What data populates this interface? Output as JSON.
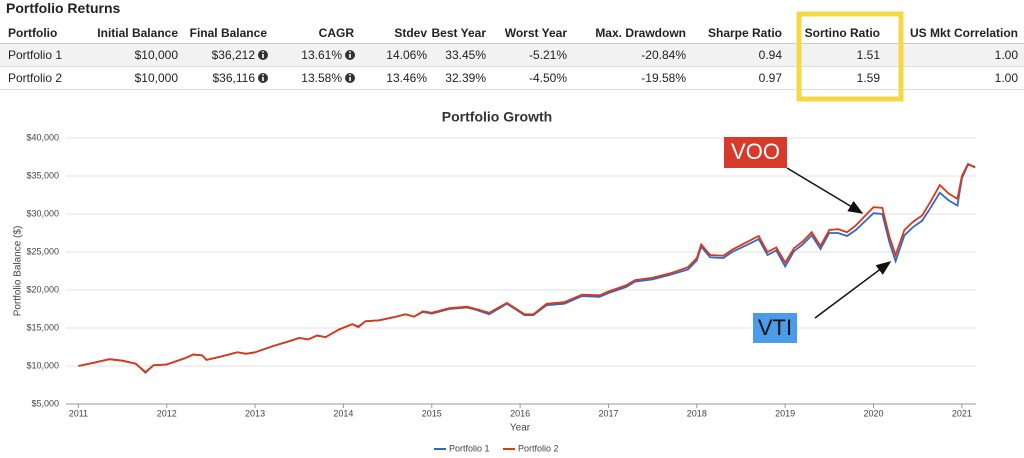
{
  "table": {
    "title": "Portfolio Returns",
    "columns": [
      "Portfolio",
      "Initial Balance",
      "Final Balance",
      "CAGR",
      "Stdev",
      "Best Year",
      "Worst Year",
      "Max. Drawdown",
      "Sharpe Ratio",
      "Sortino Ratio",
      "US Mkt Correlation"
    ],
    "rows": [
      [
        "Portfolio 1",
        "$10,000",
        "$36,212",
        "13.61%",
        "14.06%",
        "33.45%",
        "-5.21%",
        "-20.84%",
        "0.94",
        "1.51",
        "1.00"
      ],
      [
        "Portfolio 2",
        "$10,000",
        "$36,116",
        "13.58%",
        "13.46%",
        "32.39%",
        "-4.50%",
        "-19.58%",
        "0.97",
        "1.59",
        "1.00"
      ]
    ]
  },
  "chart_data": {
    "type": "line",
    "title": "Portfolio Growth",
    "x_label": "Year",
    "y_label": "Portfolio Balance ($)",
    "annotations": [
      "VOO",
      "VTI"
    ],
    "x": [
      2011.0,
      2011.2,
      2011.35,
      2011.5,
      2011.65,
      2011.76,
      2011.85,
      2012.0,
      2012.2,
      2012.3,
      2012.4,
      2012.45,
      2012.6,
      2012.8,
      2012.9,
      2013.0,
      2013.2,
      2013.4,
      2013.5,
      2013.6,
      2013.7,
      2013.8,
      2013.95,
      2014.1,
      2014.17,
      2014.25,
      2014.4,
      2014.6,
      2014.7,
      2014.8,
      2014.9,
      2015.0,
      2015.2,
      2015.4,
      2015.5,
      2015.65,
      2015.85,
      2016.05,
      2016.15,
      2016.3,
      2016.5,
      2016.7,
      2016.9,
      2017.0,
      2017.2,
      2017.3,
      2017.5,
      2017.7,
      2017.9,
      2018.0,
      2018.05,
      2018.15,
      2018.3,
      2018.4,
      2018.6,
      2018.7,
      2018.8,
      2018.9,
      2019.0,
      2019.1,
      2019.2,
      2019.3,
      2019.4,
      2019.5,
      2019.6,
      2019.7,
      2019.8,
      2019.9,
      2020.0,
      2020.1,
      2020.18,
      2020.25,
      2020.35,
      2020.45,
      2020.55,
      2020.65,
      2020.75,
      2020.85,
      2020.95,
      2021.0,
      2021.07,
      2021.15
    ],
    "series": [
      {
        "name": "Portfolio 1",
        "color": "#3366cc",
        "values": [
          10000,
          10500,
          10900,
          10700,
          10300,
          9100,
          10100,
          10200,
          11000,
          11500,
          11400,
          10800,
          11200,
          11800,
          11600,
          11800,
          12600,
          13300,
          13700,
          13500,
          14000,
          13800,
          14800,
          15500,
          15200,
          15900,
          16000,
          16500,
          16800,
          16500,
          17100,
          16900,
          17500,
          17700,
          17400,
          16800,
          18200,
          16700,
          16700,
          18000,
          18200,
          19200,
          19100,
          19600,
          20400,
          21100,
          21400,
          22000,
          22700,
          23900,
          25700,
          24300,
          24200,
          25000,
          26100,
          26700,
          24600,
          25200,
          23100,
          25100,
          26000,
          27200,
          25400,
          27500,
          27500,
          27100,
          27900,
          29000,
          30100,
          30000,
          26300,
          23800,
          27200,
          28300,
          29100,
          30900,
          32800,
          31800,
          31100,
          34700,
          36500,
          36200
        ]
      },
      {
        "name": "Portfolio 2",
        "color": "#dc3912",
        "values": [
          10000,
          10500,
          10900,
          10700,
          10300,
          9200,
          10100,
          10200,
          11000,
          11500,
          11400,
          10800,
          11200,
          11800,
          11600,
          11800,
          12600,
          13300,
          13700,
          13500,
          14000,
          13800,
          14800,
          15500,
          15100,
          15900,
          16000,
          16500,
          16800,
          16500,
          17200,
          17000,
          17600,
          17800,
          17500,
          17000,
          18300,
          16800,
          16800,
          18200,
          18400,
          19400,
          19300,
          19800,
          20600,
          21300,
          21600,
          22200,
          23000,
          24200,
          26000,
          24600,
          24500,
          25300,
          26500,
          27100,
          25000,
          25600,
          23600,
          25500,
          26400,
          27600,
          25800,
          27900,
          28000,
          27600,
          28500,
          29700,
          30900,
          30800,
          27000,
          24600,
          27900,
          29000,
          29800,
          31700,
          33800,
          32700,
          32000,
          35000,
          36600,
          36100
        ]
      }
    ],
    "xlim": [
      2010.86,
      2021.16
    ],
    "xticks": [
      2011,
      2012,
      2013,
      2014,
      2015,
      2016,
      2017,
      2018,
      2019,
      2020,
      2021
    ],
    "ylim": [
      5000,
      40000
    ],
    "yticks": [
      {
        "value": 5000,
        "label": "$5,000"
      },
      {
        "value": 10000,
        "label": "$10,000"
      },
      {
        "value": 15000,
        "label": "$15,000"
      },
      {
        "value": 20000,
        "label": "$20,000"
      },
      {
        "value": 25000,
        "label": "$25,000"
      },
      {
        "value": 30000,
        "label": "$30,000"
      },
      {
        "value": 35000,
        "label": "$35,000"
      },
      {
        "value": 40000,
        "label": "$40,000"
      }
    ],
    "grid": true,
    "legend": "bottom"
  }
}
